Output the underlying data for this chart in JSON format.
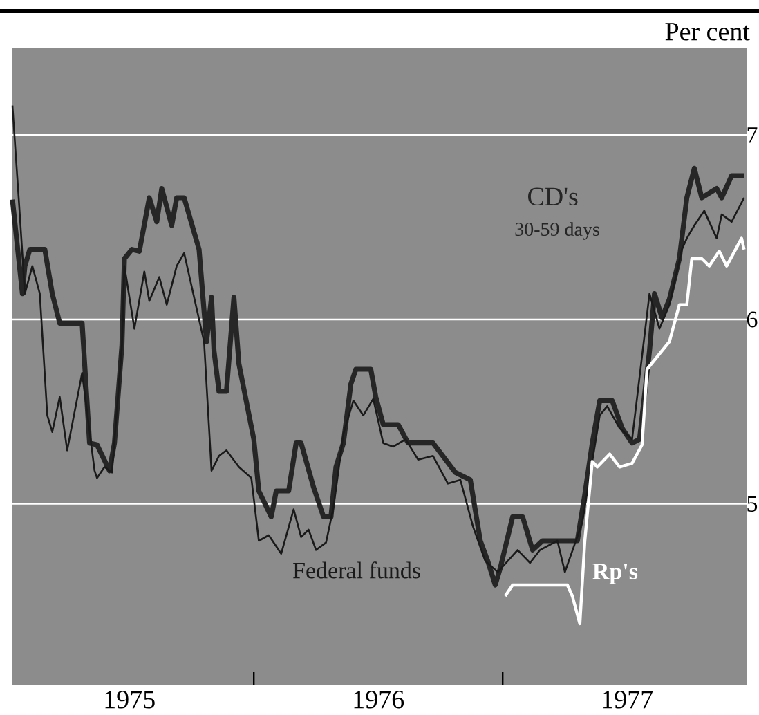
{
  "chart_data": {
    "type": "line",
    "ylabel": "Per cent",
    "annotations": [
      "30-59 days"
    ],
    "xlim": [
      1975.03,
      1977.98
    ],
    "ylim": [
      4.02,
      7.47
    ],
    "xticks": [
      {
        "value": 1975.5,
        "label": "1975"
      },
      {
        "value": 1976.0,
        "label": null
      },
      {
        "value": 1976.5,
        "label": "1976"
      },
      {
        "value": 1977.0,
        "label": null
      },
      {
        "value": 1977.5,
        "label": "1977"
      }
    ],
    "yticks": [
      5,
      6,
      7
    ],
    "grid": "y",
    "marker": "none",
    "line_style": "solid",
    "series": [
      {
        "name": "CD's",
        "color": "#262626",
        "x": [
          1975.03,
          1975.07,
          1975.08,
          1975.1,
          1975.16,
          1975.19,
          1975.22,
          1975.31,
          1975.34,
          1975.37,
          1975.42,
          1975.44,
          1975.47,
          1975.48,
          1975.51,
          1975.54,
          1975.58,
          1975.61,
          1975.63,
          1975.67,
          1975.69,
          1975.72,
          1975.78,
          1975.81,
          1975.83,
          1975.84,
          1975.86,
          1975.89,
          1975.92,
          1975.94,
          1976.0,
          1976.02,
          1976.07,
          1976.09,
          1976.14,
          1976.17,
          1976.19,
          1976.24,
          1976.28,
          1976.31,
          1976.33,
          1976.36,
          1976.39,
          1976.41,
          1976.47,
          1976.49,
          1976.52,
          1976.58,
          1976.62,
          1976.72,
          1976.81,
          1976.87,
          1976.91,
          1976.94,
          1976.97,
          1976.99,
          1977.04,
          1977.08,
          1977.12,
          1977.16,
          1977.3,
          1977.33,
          1977.36,
          1977.39,
          1977.44,
          1977.48,
          1977.52,
          1977.55,
          1977.59,
          1977.61,
          1977.64,
          1977.67,
          1977.71,
          1977.74,
          1977.77,
          1977.8,
          1977.86,
          1977.88,
          1977.92,
          1977.97
        ],
        "values": [
          6.65,
          6.14,
          6.29,
          6.38,
          6.38,
          6.14,
          5.98,
          5.98,
          5.33,
          5.32,
          5.18,
          5.33,
          5.86,
          6.33,
          6.38,
          6.37,
          6.66,
          6.53,
          6.71,
          6.51,
          6.66,
          6.66,
          6.38,
          5.88,
          6.12,
          5.83,
          5.61,
          5.61,
          6.12,
          5.76,
          5.35,
          5.07,
          4.93,
          5.07,
          5.07,
          5.33,
          5.33,
          5.09,
          4.93,
          4.93,
          5.2,
          5.33,
          5.65,
          5.73,
          5.73,
          5.58,
          5.43,
          5.43,
          5.33,
          5.33,
          5.17,
          5.13,
          4.8,
          4.69,
          4.56,
          4.65,
          4.93,
          4.93,
          4.75,
          4.8,
          4.8,
          5.05,
          5.33,
          5.56,
          5.56,
          5.41,
          5.33,
          5.35,
          5.83,
          6.14,
          6.01,
          6.11,
          6.33,
          6.66,
          6.82,
          6.66,
          6.71,
          6.66,
          6.78,
          6.78
        ]
      },
      {
        "name": "Federal funds",
        "color": "#1a1a1a",
        "x": [
          1975.03,
          1975.06,
          1975.08,
          1975.11,
          1975.14,
          1975.17,
          1975.19,
          1975.22,
          1975.25,
          1975.31,
          1975.36,
          1975.37,
          1975.4,
          1975.43,
          1975.47,
          1975.48,
          1975.52,
          1975.56,
          1975.58,
          1975.62,
          1975.65,
          1975.69,
          1975.72,
          1975.8,
          1975.83,
          1975.86,
          1975.89,
          1975.94,
          1975.99,
          1976.02,
          1976.06,
          1976.11,
          1976.16,
          1976.19,
          1976.22,
          1976.25,
          1976.29,
          1976.32,
          1976.36,
          1976.4,
          1976.44,
          1976.48,
          1976.52,
          1976.56,
          1976.61,
          1976.66,
          1976.72,
          1976.78,
          1976.83,
          1976.88,
          1976.93,
          1976.98,
          1977.06,
          1977.11,
          1977.15,
          1977.22,
          1977.25,
          1977.32,
          1977.36,
          1977.39,
          1977.42,
          1977.47,
          1977.52,
          1977.59,
          1977.63,
          1977.67,
          1977.72,
          1977.74,
          1977.77,
          1977.81,
          1977.86,
          1977.88,
          1977.92,
          1977.97
        ],
        "values": [
          7.16,
          6.56,
          6.14,
          6.29,
          6.14,
          5.48,
          5.39,
          5.58,
          5.29,
          5.71,
          5.18,
          5.14,
          5.2,
          5.17,
          5.86,
          6.29,
          5.95,
          6.26,
          6.1,
          6.23,
          6.08,
          6.29,
          6.36,
          5.88,
          5.18,
          5.26,
          5.29,
          5.2,
          5.14,
          4.8,
          4.83,
          4.73,
          4.97,
          4.82,
          4.86,
          4.75,
          4.79,
          4.98,
          5.38,
          5.56,
          5.48,
          5.57,
          5.33,
          5.31,
          5.35,
          5.24,
          5.26,
          5.11,
          5.13,
          4.88,
          4.69,
          4.63,
          4.75,
          4.68,
          4.75,
          4.8,
          4.63,
          4.9,
          5.23,
          5.48,
          5.53,
          5.41,
          5.35,
          6.14,
          5.95,
          6.08,
          6.38,
          6.44,
          6.51,
          6.59,
          6.44,
          6.57,
          6.53,
          6.66
        ]
      },
      {
        "name": "Rp's",
        "color": "#ffffff",
        "x": [
          1977.01,
          1977.04,
          1977.09,
          1977.16,
          1977.22,
          1977.26,
          1977.28,
          1977.31,
          1977.33,
          1977.36,
          1977.38,
          1977.43,
          1977.47,
          1977.52,
          1977.56,
          1977.58,
          1977.67,
          1977.71,
          1977.74,
          1977.76,
          1977.8,
          1977.83,
          1977.87,
          1977.9,
          1977.96,
          1977.97
        ],
        "values": [
          4.5,
          4.56,
          4.56,
          4.56,
          4.56,
          4.56,
          4.5,
          4.35,
          4.8,
          5.23,
          5.2,
          5.27,
          5.2,
          5.22,
          5.32,
          5.73,
          5.88,
          6.08,
          6.08,
          6.33,
          6.33,
          6.29,
          6.37,
          6.29,
          6.44,
          6.38
        ]
      }
    ]
  }
}
